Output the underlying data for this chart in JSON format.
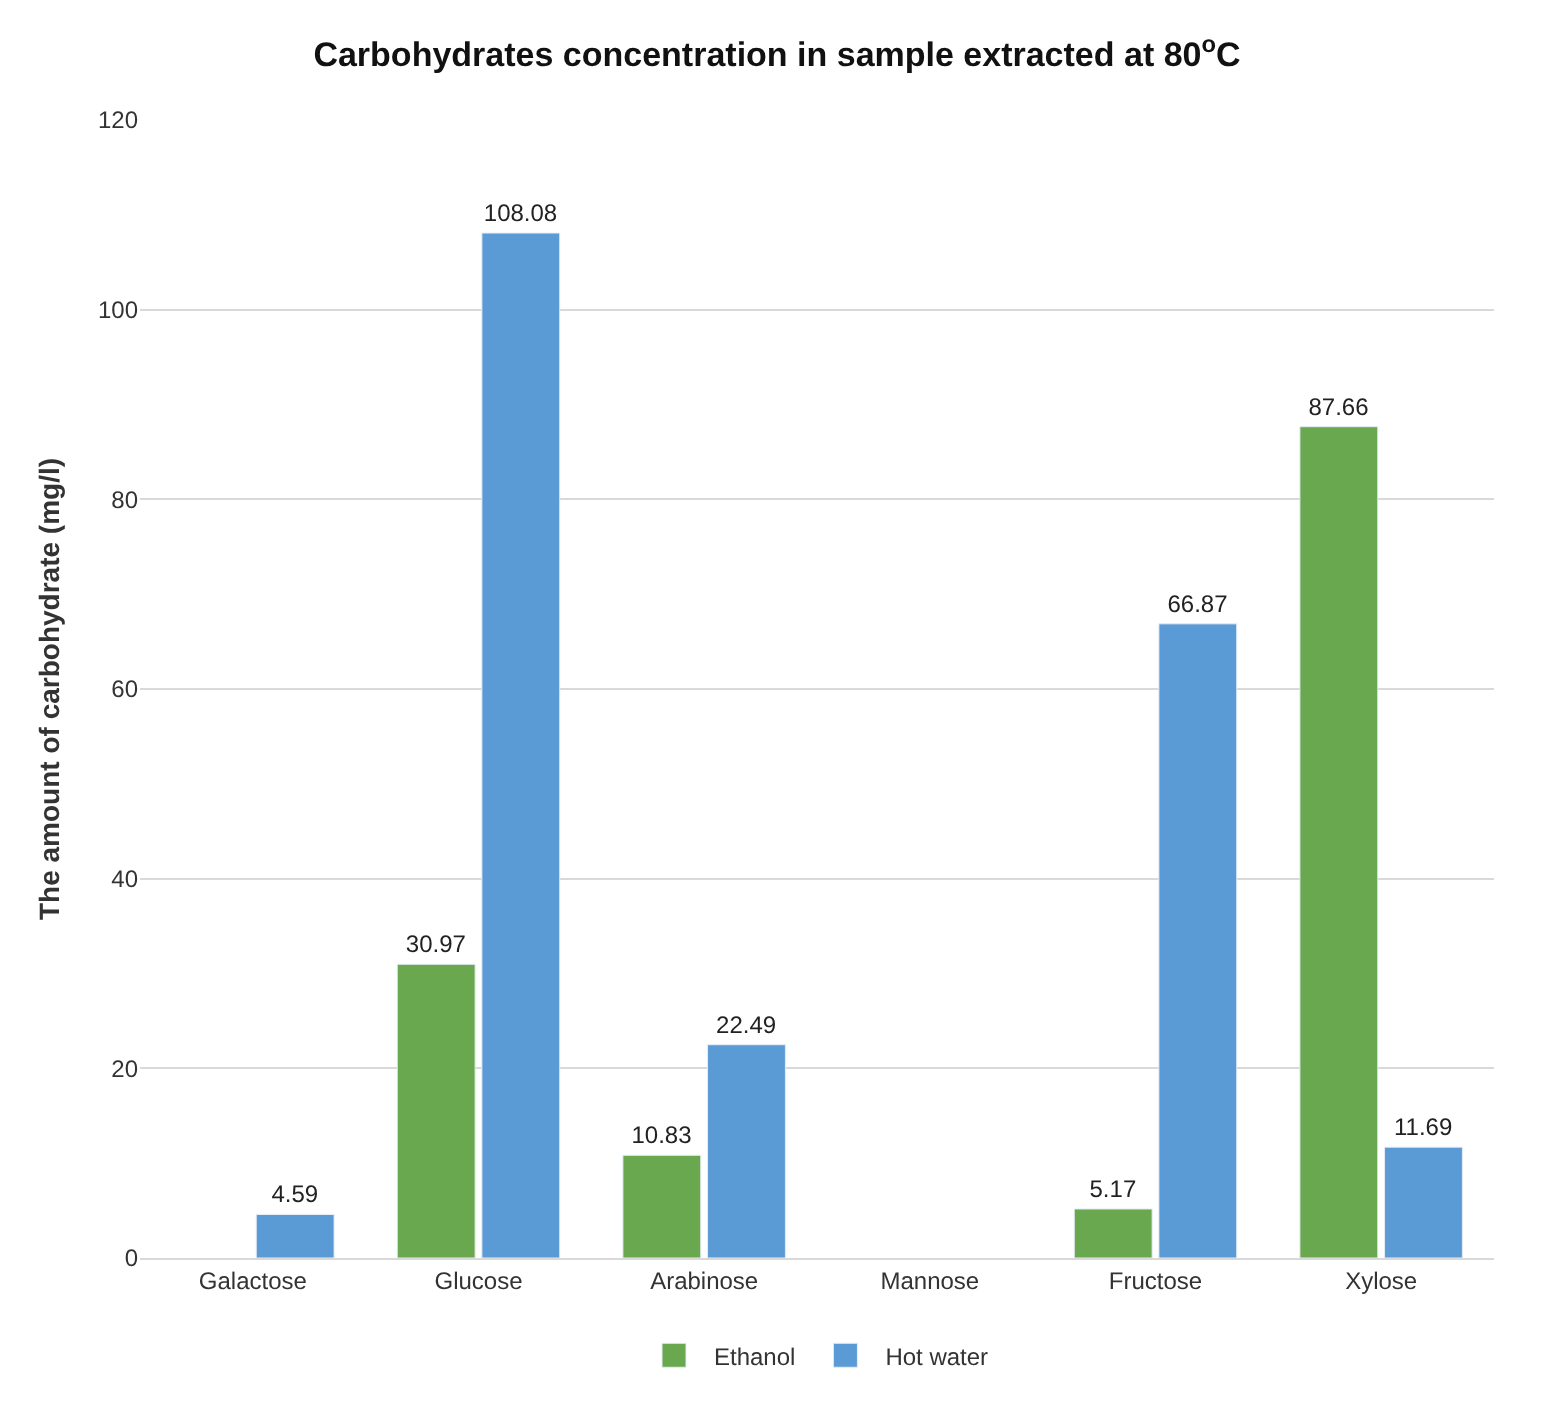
{
  "chart_data": {
    "type": "bar",
    "title": "Carbohydrates concentration in sample extracted at 80$^{o}$C",
    "ylabel": "The amount of carbohydrate (mg/l)",
    "categories": [
      "Galactose",
      "Glucose",
      "Arabinose",
      "Mannose",
      "Fructose",
      "Xylose"
    ],
    "series": [
      {
        "name": "Ethanol",
        "color": "#6aa84f",
        "values": [
          null,
          30.97,
          10.83,
          null,
          5.17,
          87.66
        ]
      },
      {
        "name": "Hot water",
        "color": "#5b9bd5",
        "values": [
          4.59,
          108.08,
          22.49,
          null,
          66.87,
          11.69
        ]
      }
    ],
    "ylim": [
      0,
      120
    ],
    "yticks": [
      0,
      20,
      40,
      60,
      80,
      100,
      120
    ],
    "grid": "y",
    "legend": "bottom",
    "data_labels": true
  }
}
